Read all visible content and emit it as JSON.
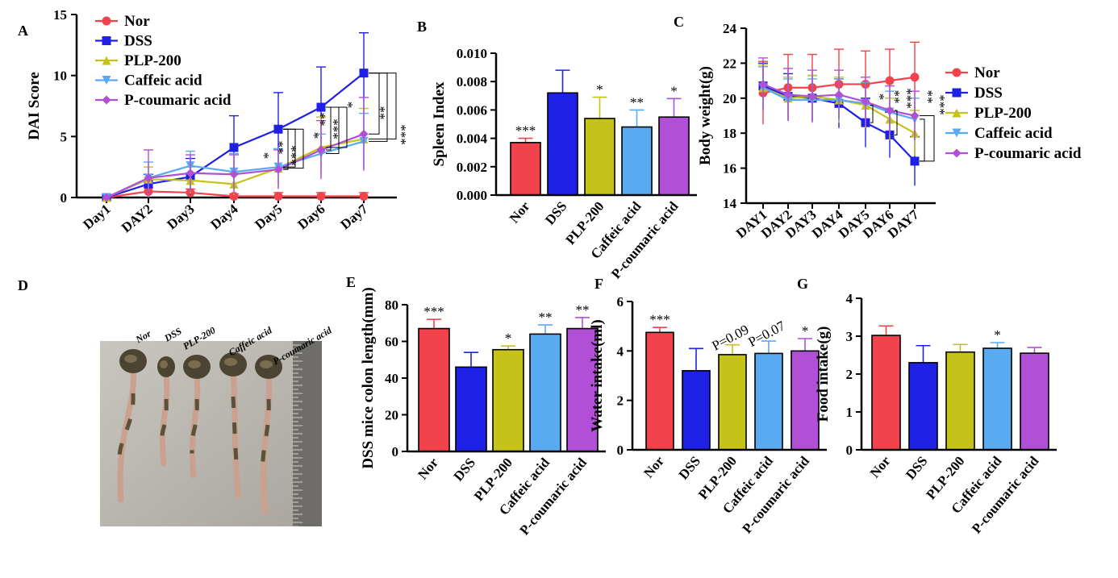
{
  "panels": {
    "A": "A",
    "B": "B",
    "C": "C",
    "D": "D",
    "E": "E",
    "F": "F",
    "G": "G"
  },
  "colors": {
    "Nor": "#f2424b",
    "DSS": "#1f20e6",
    "PLP-200": "#c5c21a",
    "Caffeic acid": "#5aaaf2",
    "P-coumaric acid": "#b14fd6"
  },
  "groups": [
    "Nor",
    "DSS",
    "PLP-200",
    "Caffeic acid",
    "P-coumaric acid"
  ],
  "chart_data": [
    {
      "panel": "A",
      "type": "line",
      "ylabel": "DAI Score",
      "categories": [
        "Day1",
        "DAY2",
        "Day3",
        "Day4",
        "Day5",
        "Day6",
        "Day7"
      ],
      "ylim": [
        0,
        15
      ],
      "yticks": [
        0,
        5,
        10,
        15
      ],
      "legend": "top-left",
      "series": [
        {
          "name": "Nor",
          "values": [
            0,
            0.5,
            0.4,
            0.1,
            0.1,
            0.1,
            0.1
          ],
          "err": [
            0,
            0.3,
            0.3,
            0.2,
            0.3,
            0.3,
            0.3
          ]
        },
        {
          "name": "DSS",
          "values": [
            0,
            1.1,
            1.7,
            4.1,
            5.6,
            7.4,
            10.2
          ],
          "err": [
            0,
            0.8,
            1.5,
            2.6,
            3.0,
            3.3,
            3.3
          ]
        },
        {
          "name": "PLP-200",
          "values": [
            0,
            1.5,
            1.4,
            1.1,
            2.4,
            4.1,
            4.8
          ],
          "err": [
            0,
            1.0,
            1.1,
            0.9,
            1.6,
            2.5,
            2.5
          ]
        },
        {
          "name": "Caffeic acid",
          "values": [
            0,
            1.6,
            2.6,
            2.1,
            2.5,
            3.6,
            4.6
          ],
          "err": [
            0,
            1.3,
            1.2,
            1.5,
            1.5,
            1.6,
            2.3
          ]
        },
        {
          "name": "P-coumaric acid",
          "values": [
            0,
            1.6,
            2.0,
            1.9,
            2.3,
            3.9,
            5.2
          ],
          "err": [
            0,
            2.3,
            1.5,
            1.6,
            1.6,
            2.4,
            3.0
          ]
        }
      ],
      "annotations": [
        "*",
        "**",
        "***",
        "*",
        "**",
        "***",
        "*",
        "**",
        "***"
      ]
    },
    {
      "panel": "B",
      "type": "bar",
      "ylabel": "Spleen Index",
      "categories": [
        "Nor",
        "DSS",
        "PLP-200",
        "Caffeic acid",
        "P-coumaric acid"
      ],
      "values": [
        0.0037,
        0.0072,
        0.0054,
        0.0048,
        0.0055
      ],
      "err": [
        0.0003,
        0.0016,
        0.0015,
        0.0012,
        0.0013
      ],
      "ylim": [
        0,
        0.01
      ],
      "yticks": [
        "0.000",
        "0.002",
        "0.004",
        "0.006",
        "0.008",
        "0.010"
      ],
      "sig": [
        "***",
        "",
        "*",
        "**",
        "*"
      ]
    },
    {
      "panel": "C",
      "type": "line",
      "ylabel": "Body weight(g)",
      "categories": [
        "DAY1",
        "DAY2",
        "DAY3",
        "DAY4",
        "DAY5",
        "DAY6",
        "DAY7"
      ],
      "ylim": [
        14,
        24
      ],
      "yticks": [
        14,
        16,
        18,
        20,
        22,
        24
      ],
      "legend": "right",
      "series": [
        {
          "name": "Nor",
          "values": [
            20.3,
            20.6,
            20.6,
            20.8,
            20.8,
            21.0,
            21.2
          ],
          "err": [
            1.8,
            1.9,
            1.9,
            2.0,
            1.9,
            1.8,
            2.0
          ]
        },
        {
          "name": "DSS",
          "values": [
            20.7,
            20.1,
            20.0,
            19.7,
            18.6,
            17.9,
            16.4
          ],
          "err": [
            1.3,
            1.3,
            1.3,
            1.4,
            1.4,
            1.3,
            1.4
          ]
        },
        {
          "name": "PLP-200",
          "values": [
            20.6,
            20.0,
            20.1,
            19.9,
            19.6,
            18.8,
            18.0
          ],
          "err": [
            1.3,
            1.2,
            1.2,
            1.3,
            1.3,
            1.2,
            1.3
          ]
        },
        {
          "name": "Caffeic acid",
          "values": [
            20.6,
            19.9,
            19.9,
            19.9,
            19.7,
            19.2,
            18.8
          ],
          "err": [
            1.2,
            1.2,
            1.2,
            1.2,
            1.2,
            1.2,
            1.2
          ]
        },
        {
          "name": "P-coumaric acid",
          "values": [
            20.8,
            20.2,
            20.1,
            20.2,
            19.8,
            19.3,
            19.0
          ],
          "err": [
            1.5,
            1.5,
            1.5,
            1.4,
            1.4,
            1.4,
            1.4
          ]
        }
      ],
      "annotations": [
        "*",
        "**",
        "***",
        "**",
        "***"
      ]
    },
    {
      "panel": "E",
      "type": "bar",
      "ylabel": "DSS mice colon length(mm)",
      "categories": [
        "Nor",
        "DSS",
        "PLP-200",
        "Caffeic acid",
        "P-coumaric acid"
      ],
      "values": [
        67,
        46,
        55.5,
        64,
        67
      ],
      "err": [
        5,
        8,
        2,
        5,
        6
      ],
      "ylim": [
        0,
        80
      ],
      "yticks": [
        0,
        20,
        40,
        60,
        80
      ],
      "sig": [
        "***",
        "",
        "*",
        "**",
        "**"
      ]
    },
    {
      "panel": "F",
      "type": "bar",
      "ylabel": "Water intake(ml)",
      "categories": [
        "Nor",
        "DSS",
        "PLP-200",
        "Caffeic acid",
        "P-coumaric acid"
      ],
      "values": [
        4.75,
        3.2,
        3.85,
        3.9,
        4.0
      ],
      "err": [
        0.2,
        0.9,
        0.4,
        0.5,
        0.5
      ],
      "ylim": [
        0,
        6
      ],
      "yticks": [
        0,
        2,
        4,
        6
      ],
      "sig": [
        "***",
        "",
        "P=0.09",
        "P=0.07",
        "*"
      ]
    },
    {
      "panel": "G",
      "type": "bar",
      "ylabel": "Food intake(g)",
      "categories": [
        "Nor",
        "DSS",
        "PLP-200",
        "Caffeic acid",
        "P-coumaric acid"
      ],
      "values": [
        3.02,
        2.3,
        2.58,
        2.68,
        2.55
      ],
      "err": [
        0.25,
        0.45,
        0.2,
        0.15,
        0.15
      ],
      "ylim": [
        0,
        4
      ],
      "yticks": [
        0,
        1,
        2,
        3,
        4
      ],
      "sig": [
        "",
        "",
        "",
        "*",
        ""
      ]
    }
  ],
  "photo": {
    "labels": [
      "Nor",
      "DSS",
      "PLP-200",
      "Caffeic acid",
      "P-coumaric acid"
    ]
  }
}
